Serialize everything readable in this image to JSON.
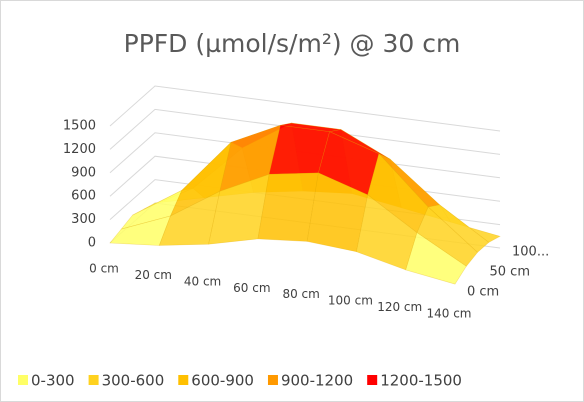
{
  "chart_data": {
    "type": "surface",
    "title": "PPFD (µmol/s/m²) @ 30 cm",
    "categories": [
      "0 cm",
      "20 cm",
      "40 cm",
      "60 cm",
      "80 cm",
      "100 cm",
      "120 cm",
      "140 cm"
    ],
    "series": [
      {
        "name": "0 cm",
        "values": [
          0,
          50,
          150,
          300,
          350,
          300,
          150,
          50
        ]
      },
      {
        "name": null,
        "values": [
          50,
          300,
          700,
          1000,
          1100,
          900,
          500,
          150
        ]
      },
      {
        "name": "50 cm",
        "values": [
          100,
          500,
          1200,
          1500,
          1500,
          1300,
          700,
          200
        ]
      },
      {
        "name": null,
        "values": [
          50,
          400,
          1000,
          1400,
          1400,
          1100,
          600,
          200
        ]
      },
      {
        "name": "100...",
        "values": [
          0,
          150,
          300,
          400,
          450,
          350,
          250,
          150
        ]
      }
    ],
    "zlim": [
      0,
      1500
    ],
    "zticks": [
      0,
      300,
      600,
      900,
      1200,
      1500
    ],
    "bands": [
      {
        "label": "0-300",
        "color": "#ffff66"
      },
      {
        "label": "300-600",
        "color": "#ffd21f"
      },
      {
        "label": "600-900",
        "color": "#ffc000"
      },
      {
        "label": "900-1200",
        "color": "#ff9900"
      },
      {
        "label": "1200-1500",
        "color": "#ff0000"
      }
    ],
    "grid": true
  }
}
